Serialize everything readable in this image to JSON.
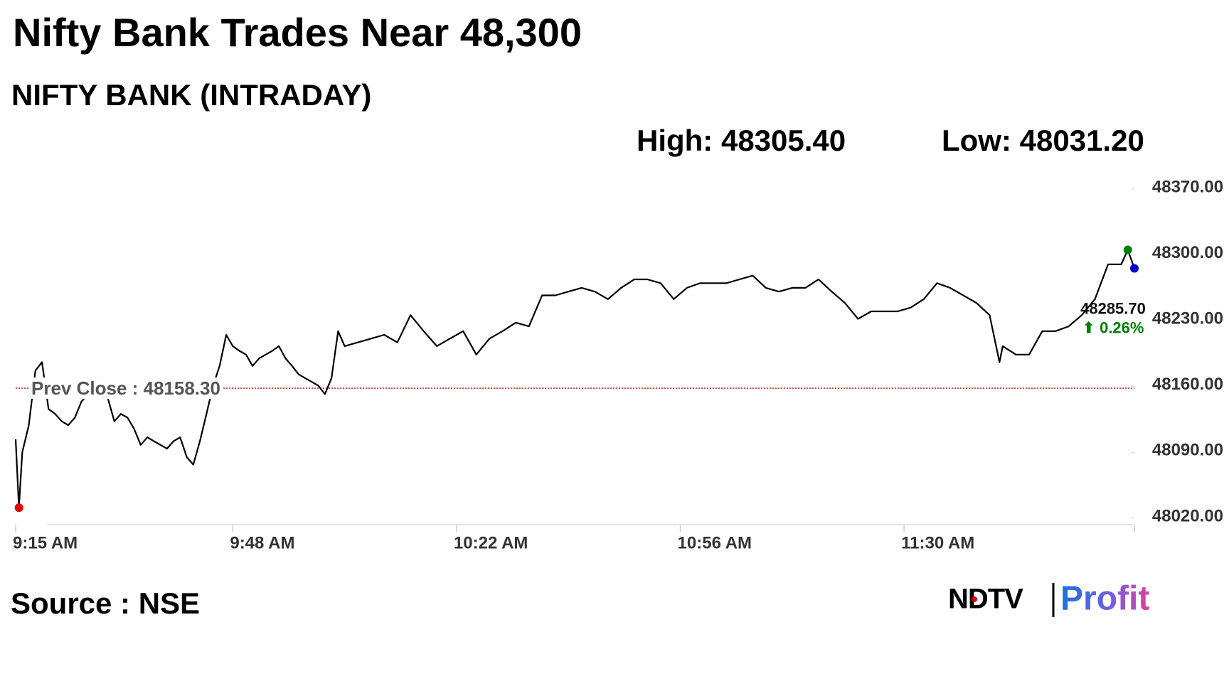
{
  "chart_data": {
    "type": "line",
    "title": "Nifty Bank Trades Near 48,300",
    "subtitle": "NIFTY BANK (INTRADAY)",
    "high_label": "High: 48305.40",
    "low_label": "Low: 48031.20",
    "color": "#000000",
    "x": [
      555,
      555.5,
      556,
      557,
      558,
      559,
      560,
      561,
      562,
      563,
      564,
      565,
      566,
      567,
      568,
      569,
      570,
      571,
      572,
      573,
      574,
      575,
      576,
      577,
      578,
      579,
      580,
      581,
      582,
      583,
      584,
      585,
      586,
      587,
      588,
      589,
      590,
      591,
      592,
      593,
      594,
      595,
      596,
      597,
      598,
      599,
      600,
      601,
      602,
      603,
      604,
      605,
      607,
      609,
      611,
      613,
      615,
      617,
      619,
      621,
      623,
      625,
      627,
      629,
      631,
      633,
      635,
      637,
      639,
      641,
      643,
      645,
      647,
      649,
      651,
      653,
      655,
      657,
      659,
      661,
      663,
      665,
      667,
      669,
      671,
      673,
      675,
      677,
      679,
      681,
      683,
      685,
      687,
      689,
      691,
      693,
      695,
      697,
      699,
      701,
      703,
      704.5,
      705,
      707,
      709,
      711,
      713,
      715,
      717,
      719,
      721,
      723,
      724,
      725
    ],
    "values": [
      48104,
      48031.2,
      48090,
      48119,
      48177,
      48186,
      48136,
      48131,
      48123,
      48119,
      48127,
      48144,
      48152,
      48161,
      48169,
      48148,
      48123,
      48131,
      48127,
      48115,
      48098,
      48106,
      48102,
      48098,
      48094,
      48102,
      48106,
      48085,
      48077,
      48102,
      48131,
      48161,
      48182,
      48215,
      48203,
      48198,
      48194,
      48182,
      48190,
      48194,
      48198,
      48203,
      48190,
      48182,
      48173,
      48169,
      48165,
      48161,
      48152,
      48169,
      48219,
      48203,
      48207,
      48211,
      48215,
      48207,
      48236,
      48219,
      48203,
      48211,
      48219,
      48194,
      48211,
      48219,
      48228,
      48224,
      48257,
      48257,
      48261,
      48265,
      48261,
      48253,
      48265,
      48274,
      48274,
      48270,
      48253,
      48265,
      48270,
      48270,
      48270,
      48274,
      48278,
      48265,
      48261,
      48265,
      48265,
      48274,
      48261,
      48249,
      48232,
      48240,
      48240,
      48240,
      48244,
      48253,
      48270,
      48265,
      48257,
      48249,
      48236,
      48186,
      48203,
      48194,
      48194,
      48219,
      48219,
      48224,
      48236,
      48253,
      48290,
      48290,
      48305.4,
      48285.7
    ],
    "xlim": [
      555,
      725
    ],
    "xticks": [
      {
        "value": 555,
        "label": "9:15 AM"
      },
      {
        "value": 588,
        "label": "9:48 AM"
      },
      {
        "value": 622,
        "label": "10:22 AM"
      },
      {
        "value": 656,
        "label": "10:56 AM"
      },
      {
        "value": 690,
        "label": "11:30 AM"
      }
    ],
    "ylim": [
      48020,
      48370
    ],
    "yticks": [
      {
        "value": 48020,
        "label": "48020.00"
      },
      {
        "value": 48090,
        "label": "48090.00"
      },
      {
        "value": 48160,
        "label": "48160.00"
      },
      {
        "value": 48230,
        "label": "48230.00"
      },
      {
        "value": 48300,
        "label": "48300.00"
      },
      {
        "value": 48370,
        "label": "48370.00"
      }
    ],
    "prev_close": {
      "value": 48158.3,
      "label": "Prev Close : 48158.30",
      "color": "#cc0000"
    },
    "low_color": "#e00000",
    "high_color": "#008000",
    "last_color": "#0000cc",
    "last_value_label": "48285.70",
    "change_label": "⬆ 0.26%",
    "change_color": "#008000",
    "source": "Source : NSE",
    "logo": {
      "left": "NDTV",
      "right": "Profit"
    }
  }
}
